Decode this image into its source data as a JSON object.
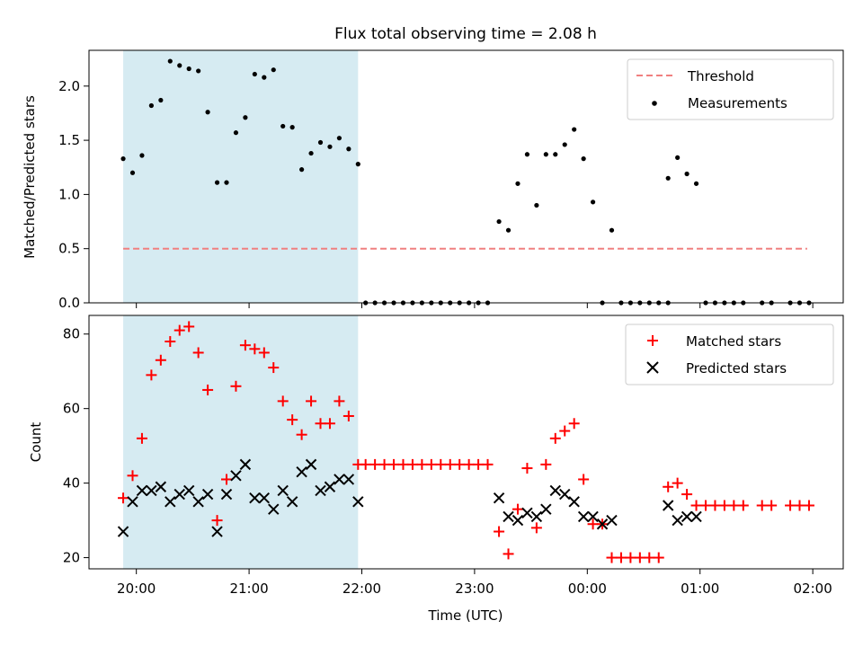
{
  "figure": {
    "title": "Flux total observing time = 2.08 h"
  },
  "colors": {
    "shade": "#add8e6",
    "threshold": "#f08080",
    "measurement": "#000000",
    "matched": "#ff0000",
    "predicted": "#000000"
  },
  "chart_data": [
    {
      "type": "scatter",
      "ylabel": "Matched/Predicted stars",
      "xlabel": "",
      "x_axis": "time (hours since 20:00 UTC)",
      "xlim": [
        -0.42,
        6.27
      ],
      "ylim": [
        0,
        2.33
      ],
      "yticks": [
        0.0,
        0.5,
        1.0,
        1.5,
        2.0
      ],
      "ytick_labels": [
        "0.0",
        "0.5",
        "1.0",
        "1.5",
        "2.0"
      ],
      "shaded_span": {
        "start": "19:53",
        "end": "21:58"
      },
      "legend": {
        "location": "upper right",
        "entries": [
          "Threshold",
          "Measurements"
        ]
      },
      "threshold": {
        "name": "Threshold",
        "value": 0.5,
        "x_start": "19:53",
        "x_end": "01:57",
        "style": "dashed"
      },
      "series": [
        {
          "name": "Measurements",
          "marker": "dot",
          "points": [
            [
              "19:53",
              1.33
            ],
            [
              "19:58",
              1.2
            ],
            [
              "20:03",
              1.36
            ],
            [
              "20:08",
              1.82
            ],
            [
              "20:13",
              1.87
            ],
            [
              "20:18",
              2.23
            ],
            [
              "20:23",
              2.19
            ],
            [
              "20:28",
              2.16
            ],
            [
              "20:33",
              2.14
            ],
            [
              "20:38",
              1.76
            ],
            [
              "20:43",
              1.11
            ],
            [
              "20:48",
              1.11
            ],
            [
              "20:53",
              1.57
            ],
            [
              "20:58",
              1.71
            ],
            [
              "21:03",
              2.11
            ],
            [
              "21:08",
              2.08
            ],
            [
              "21:13",
              2.15
            ],
            [
              "21:18",
              1.63
            ],
            [
              "21:23",
              1.62
            ],
            [
              "21:28",
              1.23
            ],
            [
              "21:33",
              1.38
            ],
            [
              "21:38",
              1.48
            ],
            [
              "21:43",
              1.44
            ],
            [
              "21:48",
              1.52
            ],
            [
              "21:53",
              1.42
            ],
            [
              "21:58",
              1.28
            ],
            [
              "22:02",
              0
            ],
            [
              "22:07",
              0
            ],
            [
              "22:12",
              0
            ],
            [
              "22:17",
              0
            ],
            [
              "22:22",
              0
            ],
            [
              "22:27",
              0
            ],
            [
              "22:32",
              0
            ],
            [
              "22:37",
              0
            ],
            [
              "22:42",
              0
            ],
            [
              "22:47",
              0
            ],
            [
              "22:52",
              0
            ],
            [
              "22:57",
              0
            ],
            [
              "23:02",
              0
            ],
            [
              "23:07",
              0
            ],
            [
              "23:13",
              0.75
            ],
            [
              "23:18",
              0.67
            ],
            [
              "23:23",
              1.1
            ],
            [
              "23:28",
              1.37
            ],
            [
              "23:33",
              0.9
            ],
            [
              "23:38",
              1.37
            ],
            [
              "23:43",
              1.37
            ],
            [
              "23:48",
              1.46
            ],
            [
              "23:53",
              1.6
            ],
            [
              "23:58",
              1.33
            ],
            [
              "00:03",
              0.93
            ],
            [
              "00:08",
              0
            ],
            [
              "00:13",
              0.67
            ],
            [
              "00:18",
              0
            ],
            [
              "00:23",
              0
            ],
            [
              "00:28",
              0
            ],
            [
              "00:33",
              0
            ],
            [
              "00:38",
              0
            ],
            [
              "00:43",
              0
            ],
            [
              "00:43",
              1.15
            ],
            [
              "00:48",
              1.34
            ],
            [
              "00:53",
              1.19
            ],
            [
              "00:58",
              1.1
            ],
            [
              "01:03",
              0
            ],
            [
              "01:08",
              0
            ],
            [
              "01:13",
              0
            ],
            [
              "01:18",
              0
            ],
            [
              "01:23",
              0
            ],
            [
              "01:33",
              0
            ],
            [
              "01:38",
              0
            ],
            [
              "01:48",
              0
            ],
            [
              "01:53",
              0
            ],
            [
              "01:58",
              0
            ]
          ]
        }
      ]
    },
    {
      "type": "scatter",
      "ylabel": "Count",
      "xlabel": "Time (UTC)",
      "xlim": [
        -0.42,
        6.27
      ],
      "ylim": [
        17,
        85
      ],
      "yticks": [
        20,
        40,
        60,
        80
      ],
      "ytick_labels": [
        "20",
        "40",
        "60",
        "80"
      ],
      "xticks": [
        0,
        1,
        2,
        3,
        4,
        5,
        6
      ],
      "xtick_labels": [
        "20:00",
        "21:00",
        "22:00",
        "23:00",
        "00:00",
        "01:00",
        "02:00"
      ],
      "shaded_span": {
        "start": "19:53",
        "end": "21:58"
      },
      "legend": {
        "location": "upper right",
        "entries": [
          "Matched stars",
          "Predicted stars"
        ]
      },
      "series": [
        {
          "name": "Matched stars",
          "marker": "plus",
          "points": [
            [
              "19:53",
              36
            ],
            [
              "19:58",
              42
            ],
            [
              "20:03",
              52
            ],
            [
              "20:08",
              69
            ],
            [
              "20:13",
              73
            ],
            [
              "20:18",
              78
            ],
            [
              "20:23",
              81
            ],
            [
              "20:28",
              82
            ],
            [
              "20:33",
              75
            ],
            [
              "20:38",
              65
            ],
            [
              "20:43",
              30
            ],
            [
              "20:48",
              41
            ],
            [
              "20:53",
              66
            ],
            [
              "20:58",
              77
            ],
            [
              "21:03",
              76
            ],
            [
              "21:08",
              75
            ],
            [
              "21:13",
              71
            ],
            [
              "21:18",
              62
            ],
            [
              "21:23",
              57
            ],
            [
              "21:28",
              53
            ],
            [
              "21:33",
              62
            ],
            [
              "21:38",
              56
            ],
            [
              "21:43",
              56
            ],
            [
              "21:48",
              62
            ],
            [
              "21:53",
              58
            ],
            [
              "21:58",
              45
            ],
            [
              "22:02",
              45
            ],
            [
              "22:07",
              45
            ],
            [
              "22:12",
              45
            ],
            [
              "22:17",
              45
            ],
            [
              "22:22",
              45
            ],
            [
              "22:27",
              45
            ],
            [
              "22:32",
              45
            ],
            [
              "22:37",
              45
            ],
            [
              "22:42",
              45
            ],
            [
              "22:47",
              45
            ],
            [
              "22:52",
              45
            ],
            [
              "22:57",
              45
            ],
            [
              "23:02",
              45
            ],
            [
              "23:07",
              45
            ],
            [
              "23:13",
              27
            ],
            [
              "23:18",
              21
            ],
            [
              "23:23",
              33
            ],
            [
              "23:28",
              44
            ],
            [
              "23:33",
              28
            ],
            [
              "23:38",
              45
            ],
            [
              "23:43",
              52
            ],
            [
              "23:48",
              54
            ],
            [
              "23:53",
              56
            ],
            [
              "23:58",
              41
            ],
            [
              "00:03",
              29
            ],
            [
              "00:08",
              29
            ],
            [
              "00:13",
              20
            ],
            [
              "00:18",
              20
            ],
            [
              "00:23",
              20
            ],
            [
              "00:28",
              20
            ],
            [
              "00:33",
              20
            ],
            [
              "00:38",
              20
            ],
            [
              "00:43",
              39
            ],
            [
              "00:48",
              40
            ],
            [
              "00:53",
              37
            ],
            [
              "00:58",
              34
            ],
            [
              "01:03",
              34
            ],
            [
              "01:08",
              34
            ],
            [
              "01:13",
              34
            ],
            [
              "01:18",
              34
            ],
            [
              "01:23",
              34
            ],
            [
              "01:33",
              34
            ],
            [
              "01:38",
              34
            ],
            [
              "01:48",
              34
            ],
            [
              "01:53",
              34
            ],
            [
              "01:58",
              34
            ]
          ]
        },
        {
          "name": "Predicted stars",
          "marker": "x",
          "points": [
            [
              "19:53",
              27
            ],
            [
              "19:58",
              35
            ],
            [
              "20:03",
              38
            ],
            [
              "20:08",
              38
            ],
            [
              "20:13",
              39
            ],
            [
              "20:18",
              35
            ],
            [
              "20:23",
              37
            ],
            [
              "20:28",
              38
            ],
            [
              "20:33",
              35
            ],
            [
              "20:38",
              37
            ],
            [
              "20:43",
              27
            ],
            [
              "20:48",
              37
            ],
            [
              "20:53",
              42
            ],
            [
              "20:58",
              45
            ],
            [
              "21:03",
              36
            ],
            [
              "21:08",
              36
            ],
            [
              "21:13",
              33
            ],
            [
              "21:18",
              38
            ],
            [
              "21:23",
              35
            ],
            [
              "21:28",
              43
            ],
            [
              "21:33",
              45
            ],
            [
              "21:38",
              38
            ],
            [
              "21:43",
              39
            ],
            [
              "21:48",
              41
            ],
            [
              "21:53",
              41
            ],
            [
              "21:58",
              35
            ],
            [
              "23:13",
              36
            ],
            [
              "23:18",
              31
            ],
            [
              "23:23",
              30
            ],
            [
              "23:28",
              32
            ],
            [
              "23:33",
              31
            ],
            [
              "23:38",
              33
            ],
            [
              "23:43",
              38
            ],
            [
              "23:48",
              37
            ],
            [
              "23:53",
              35
            ],
            [
              "23:58",
              31
            ],
            [
              "00:03",
              31
            ],
            [
              "00:08",
              29
            ],
            [
              "00:13",
              30
            ],
            [
              "00:43",
              34
            ],
            [
              "00:48",
              30
            ],
            [
              "00:53",
              31
            ],
            [
              "00:58",
              31
            ]
          ]
        }
      ]
    }
  ]
}
